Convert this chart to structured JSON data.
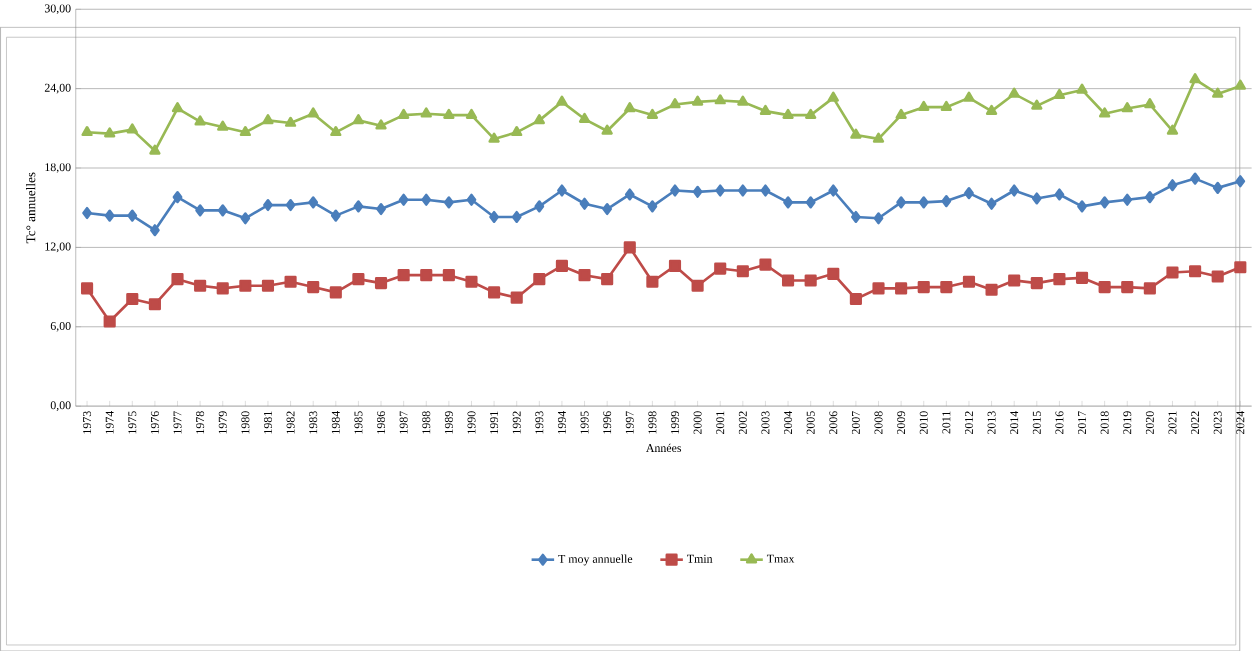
{
  "chart_data": {
    "type": "line",
    "xlabel": "Années",
    "ylabel": "Tc° annuelles",
    "categories": [
      "1973",
      "1974",
      "1975",
      "1976",
      "1977",
      "1978",
      "1979",
      "1980",
      "1981",
      "1982",
      "1983",
      "1984",
      "1985",
      "1986",
      "1987",
      "1988",
      "1989",
      "1990",
      "1991",
      "1992",
      "1993",
      "1994",
      "1995",
      "1996",
      "1997",
      "1998",
      "1999",
      "2000",
      "2001",
      "2002",
      "2003",
      "2004",
      "2005",
      "2006",
      "2007",
      "2008",
      "2009",
      "2010",
      "2011",
      "2012",
      "2013",
      "2014",
      "2015",
      "2016",
      "2017",
      "2018",
      "2019",
      "2020",
      "2021",
      "2022",
      "2023",
      "2024"
    ],
    "series": [
      {
        "name": "T moy annuelle",
        "color": "#4a7ebb",
        "marker": "diamond",
        "values": [
          14.6,
          14.4,
          14.4,
          13.3,
          15.8,
          14.8,
          14.8,
          14.2,
          15.2,
          15.2,
          15.4,
          14.4,
          15.1,
          14.9,
          15.6,
          15.6,
          15.4,
          15.6,
          14.3,
          14.3,
          15.1,
          16.3,
          15.3,
          14.9,
          16.0,
          15.1,
          16.3,
          16.2,
          16.3,
          16.3,
          16.3,
          15.4,
          15.4,
          16.3,
          14.3,
          14.2,
          15.4,
          15.4,
          15.5,
          16.1,
          15.3,
          16.3,
          15.7,
          16.0,
          15.1,
          15.4,
          15.6,
          15.8,
          16.7,
          17.2,
          16.5,
          17.0
        ]
      },
      {
        "name": "Tmin",
        "color": "#be4b48",
        "marker": "square",
        "values": [
          8.9,
          6.4,
          8.1,
          7.7,
          9.6,
          9.1,
          8.9,
          9.1,
          9.1,
          9.4,
          9.0,
          8.6,
          9.6,
          9.3,
          9.9,
          9.9,
          9.9,
          9.4,
          8.6,
          8.2,
          9.6,
          10.6,
          9.9,
          9.6,
          12.0,
          9.4,
          10.6,
          9.1,
          10.4,
          10.2,
          10.7,
          9.5,
          9.5,
          10.0,
          8.1,
          8.9,
          8.9,
          9.0,
          9.0,
          9.4,
          8.8,
          9.5,
          9.3,
          9.6,
          9.7,
          9.0,
          9.0,
          8.9,
          10.1,
          10.2,
          9.8,
          10.5
        ]
      },
      {
        "name": "Tmax",
        "color": "#98b954",
        "marker": "triangle",
        "values": [
          20.7,
          20.6,
          20.9,
          19.3,
          22.5,
          21.5,
          21.1,
          20.7,
          21.6,
          21.4,
          22.1,
          20.7,
          21.6,
          21.2,
          22.0,
          22.1,
          22.0,
          22.0,
          20.2,
          20.7,
          21.6,
          23.0,
          21.7,
          20.8,
          22.5,
          22.0,
          22.8,
          23.0,
          23.1,
          23.0,
          22.3,
          22.0,
          22.0,
          23.3,
          20.5,
          20.2,
          22.0,
          22.6,
          22.6,
          23.3,
          22.3,
          23.6,
          22.7,
          23.5,
          23.9,
          22.1,
          22.5,
          22.8,
          20.8,
          24.7,
          23.6,
          24.2
        ]
      }
    ],
    "ylim": [
      0,
      30
    ],
    "yticks": [
      {
        "value": 0,
        "label": "0,00"
      },
      {
        "value": 6,
        "label": "6,00"
      },
      {
        "value": 12,
        "label": "12,00"
      },
      {
        "value": 18,
        "label": "18,00"
      },
      {
        "value": 24,
        "label": "24,00"
      },
      {
        "value": 30,
        "label": "30,00"
      }
    ],
    "grid": "y",
    "legend": "bottom",
    "line_style": "solid"
  }
}
